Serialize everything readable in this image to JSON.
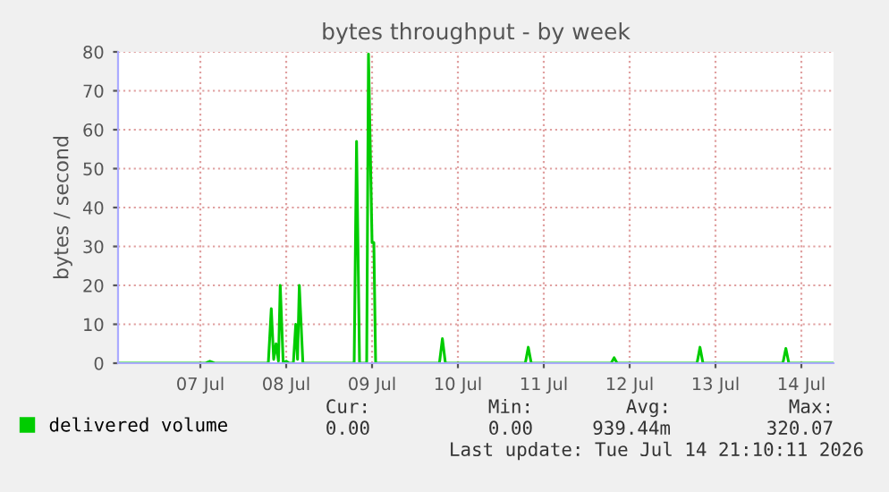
{
  "chart_data": {
    "type": "line",
    "title": "bytes throughput - by week",
    "ylabel": "bytes / second",
    "x": [
      "2026-07-06T01:00",
      "2026-07-07T01:30",
      "2026-07-07T02:40",
      "2026-07-07T04:00",
      "2026-07-07T19:00",
      "2026-07-07T19:50",
      "2026-07-07T20:30",
      "2026-07-07T21:10",
      "2026-07-07T21:50",
      "2026-07-07T22:20",
      "2026-07-07T23:10",
      "2026-07-08T00:00",
      "2026-07-08T00:50",
      "2026-07-08T02:00",
      "2026-07-08T02:40",
      "2026-07-08T03:10",
      "2026-07-08T03:40",
      "2026-07-08T04:40",
      "2026-07-08T19:00",
      "2026-07-08T19:40",
      "2026-07-08T20:30",
      "2026-07-08T22:30",
      "2026-07-08T23:00",
      "2026-07-09T00:00",
      "2026-07-09T00:30",
      "2026-07-09T01:00",
      "2026-07-09T18:50",
      "2026-07-09T19:40",
      "2026-07-09T20:30",
      "2026-07-10T18:50",
      "2026-07-10T19:40",
      "2026-07-10T20:30",
      "2026-07-11T18:50",
      "2026-07-11T19:40",
      "2026-07-11T20:30",
      "2026-07-12T18:50",
      "2026-07-12T19:40",
      "2026-07-12T20:30",
      "2026-07-13T18:50",
      "2026-07-13T19:40",
      "2026-07-13T20:30",
      "2026-07-14T09:00"
    ],
    "series": [
      {
        "name": "delivered volume",
        "color": "#00cc00",
        "values": [
          0,
          0,
          0.5,
          0,
          0,
          14,
          1,
          5,
          0.5,
          20,
          0,
          0.5,
          0,
          0,
          10,
          1,
          20,
          0,
          0,
          57,
          0,
          0,
          79.5,
          31,
          31,
          0,
          0,
          6.3,
          0,
          0,
          4.1,
          0,
          0,
          1.4,
          0,
          0,
          4.1,
          0,
          0,
          3.8,
          0,
          0
        ]
      }
    ],
    "xlim": [
      "2026-07-06T01:00",
      "2026-07-14T09:00"
    ],
    "xticks": [
      {
        "value": "2026-07-07",
        "label": "07 Jul"
      },
      {
        "value": "2026-07-08",
        "label": "08 Jul"
      },
      {
        "value": "2026-07-09",
        "label": "09 Jul"
      },
      {
        "value": "2026-07-10",
        "label": "10 Jul"
      },
      {
        "value": "2026-07-11",
        "label": "11 Jul"
      },
      {
        "value": "2026-07-12",
        "label": "12 Jul"
      },
      {
        "value": "2026-07-13",
        "label": "13 Jul"
      },
      {
        "value": "2026-07-14",
        "label": "14 Jul"
      }
    ],
    "ylim": [
      0,
      80
    ],
    "yticks": [
      0,
      10,
      20,
      30,
      40,
      50,
      60,
      70,
      80
    ],
    "grid": true,
    "legend": "bottom left",
    "annotations": [
      "Cur:",
      "Min:",
      "Avg:",
      "Max:",
      "0.00",
      "0.00",
      "939.44m",
      "320.07",
      "Last update: Tue Jul 14 21:10:11 2026"
    ]
  }
}
